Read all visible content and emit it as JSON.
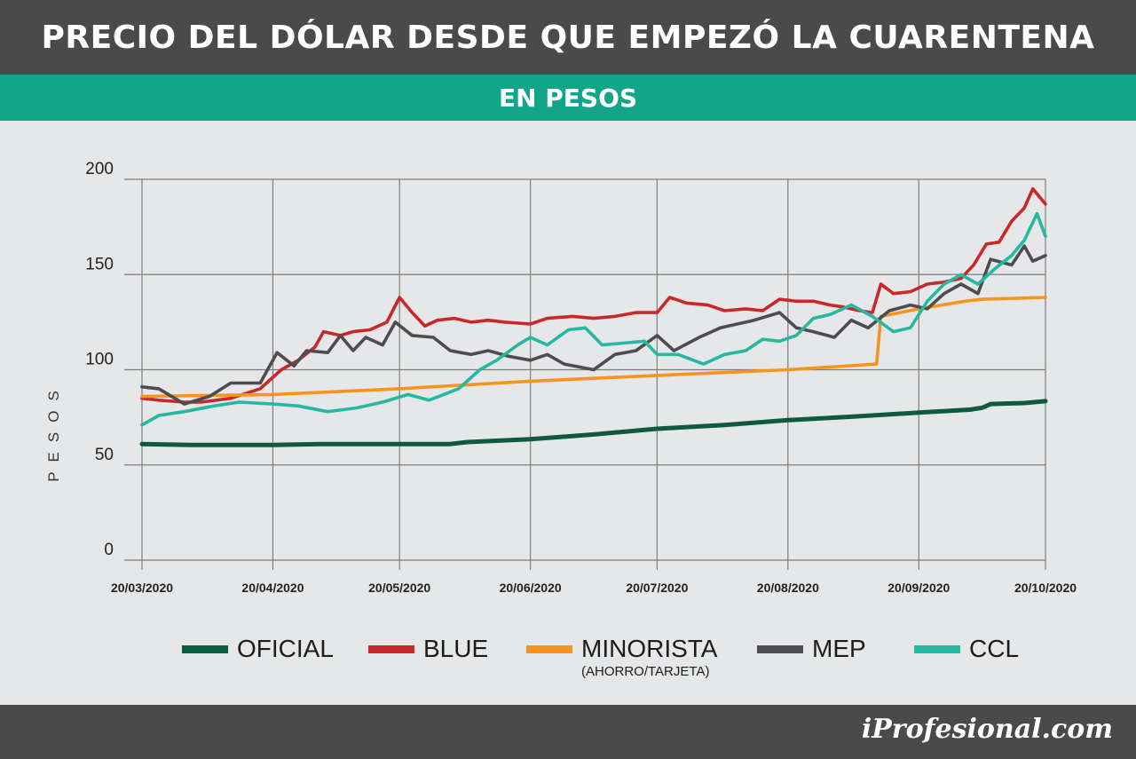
{
  "header": {
    "title": "PRECIO DEL DÓLAR DESDE QUE EMPEZÓ LA CUARENTENA",
    "subtitle": "EN PESOS"
  },
  "footer": {
    "brand": "iProfesional.com"
  },
  "colors": {
    "title_bar": "#4a4a4a",
    "subtitle_bar": "#12a58a",
    "oficial": "#0d5a3e",
    "blue": "#c8282a",
    "minorista": "#f7941d",
    "mep": "#4d4d4f",
    "ccl": "#26b8a0"
  },
  "legend": [
    {
      "key": "oficial",
      "label": "OFICIAL",
      "note": ""
    },
    {
      "key": "blue",
      "label": "BLUE",
      "note": ""
    },
    {
      "key": "minorista",
      "label": "MINORISTA",
      "note": "(AHORRO/TARJETA)"
    },
    {
      "key": "mep",
      "label": "MEP",
      "note": ""
    },
    {
      "key": "ccl",
      "label": "CCL",
      "note": ""
    }
  ],
  "chart_data": {
    "type": "line",
    "ylabel": "PESOS",
    "xlabel": "",
    "ylim": [
      0,
      200
    ],
    "yticks": [
      0,
      50,
      100,
      150,
      200
    ],
    "xticks": [
      "20/03/2020",
      "20/04/2020",
      "20/05/2020",
      "20/06/2020",
      "20/07/2020",
      "20/08/2020",
      "20/09/2020",
      "20/10/2020"
    ],
    "xrange": [
      "2020-03-20",
      "2020-10-20"
    ],
    "grid": true,
    "legend_position": "bottom",
    "series": [
      {
        "key": "oficial",
        "name": "OFICIAL",
        "points": [
          [
            "2020-03-20",
            61
          ],
          [
            "2020-04-01",
            60.5
          ],
          [
            "2020-04-20",
            60.5
          ],
          [
            "2020-05-01",
            61
          ],
          [
            "2020-05-20",
            61
          ],
          [
            "2020-06-01",
            61
          ],
          [
            "2020-06-05",
            62
          ],
          [
            "2020-06-20",
            63.5
          ],
          [
            "2020-07-05",
            66
          ],
          [
            "2020-07-20",
            69
          ],
          [
            "2020-08-05",
            71
          ],
          [
            "2020-08-20",
            73.5
          ],
          [
            "2020-09-05",
            75.5
          ],
          [
            "2020-09-20",
            77.5
          ],
          [
            "2020-10-02",
            79
          ],
          [
            "2020-10-05",
            80
          ],
          [
            "2020-10-07",
            82
          ],
          [
            "2020-10-15",
            82.5
          ],
          [
            "2020-10-20",
            83.5
          ]
        ]
      },
      {
        "key": "blue",
        "name": "BLUE",
        "points": [
          [
            "2020-03-20",
            85
          ],
          [
            "2020-03-24",
            84
          ],
          [
            "2020-03-30",
            83
          ],
          [
            "2020-04-03",
            83
          ],
          [
            "2020-04-10",
            85
          ],
          [
            "2020-04-17",
            90
          ],
          [
            "2020-04-22",
            100
          ],
          [
            "2020-04-26",
            105
          ],
          [
            "2020-04-30",
            112
          ],
          [
            "2020-05-02",
            120
          ],
          [
            "2020-05-06",
            118
          ],
          [
            "2020-05-09",
            120
          ],
          [
            "2020-05-13",
            121
          ],
          [
            "2020-05-17",
            125
          ],
          [
            "2020-05-20",
            138
          ],
          [
            "2020-05-23",
            130
          ],
          [
            "2020-05-26",
            123
          ],
          [
            "2020-05-29",
            126
          ],
          [
            "2020-06-02",
            127
          ],
          [
            "2020-06-06",
            125
          ],
          [
            "2020-06-10",
            126
          ],
          [
            "2020-06-14",
            125
          ],
          [
            "2020-06-20",
            124
          ],
          [
            "2020-06-24",
            127
          ],
          [
            "2020-06-30",
            128
          ],
          [
            "2020-07-05",
            127
          ],
          [
            "2020-07-10",
            128
          ],
          [
            "2020-07-15",
            130
          ],
          [
            "2020-07-20",
            130
          ],
          [
            "2020-07-23",
            138
          ],
          [
            "2020-07-27",
            135
          ],
          [
            "2020-08-01",
            134
          ],
          [
            "2020-08-05",
            131
          ],
          [
            "2020-08-10",
            132
          ],
          [
            "2020-08-14",
            131
          ],
          [
            "2020-08-18",
            137
          ],
          [
            "2020-08-22",
            136
          ],
          [
            "2020-08-26",
            136
          ],
          [
            "2020-08-30",
            134
          ],
          [
            "2020-09-02",
            133
          ],
          [
            "2020-09-06",
            131
          ],
          [
            "2020-09-09",
            130
          ],
          [
            "2020-09-11",
            145
          ],
          [
            "2020-09-14",
            140
          ],
          [
            "2020-09-18",
            141
          ],
          [
            "2020-09-22",
            145
          ],
          [
            "2020-09-26",
            146
          ],
          [
            "2020-09-30",
            148
          ],
          [
            "2020-10-03",
            155
          ],
          [
            "2020-10-06",
            166
          ],
          [
            "2020-10-09",
            167
          ],
          [
            "2020-10-12",
            178
          ],
          [
            "2020-10-15",
            185
          ],
          [
            "2020-10-17",
            195
          ],
          [
            "2020-10-20",
            187
          ]
        ]
      },
      {
        "key": "minorista",
        "name": "MINORISTA",
        "points": [
          [
            "2020-03-20",
            86
          ],
          [
            "2020-04-20",
            87
          ],
          [
            "2020-05-20",
            90
          ],
          [
            "2020-06-20",
            94
          ],
          [
            "2020-07-20",
            97
          ],
          [
            "2020-08-20",
            100
          ],
          [
            "2020-09-10",
            103
          ],
          [
            "2020-09-11",
            128
          ],
          [
            "2020-09-20",
            132
          ],
          [
            "2020-10-01",
            136
          ],
          [
            "2020-10-05",
            137
          ],
          [
            "2020-10-20",
            138
          ]
        ]
      },
      {
        "key": "mep",
        "name": "MEP",
        "points": [
          [
            "2020-03-20",
            91
          ],
          [
            "2020-03-24",
            90
          ],
          [
            "2020-03-30",
            82
          ],
          [
            "2020-04-05",
            86
          ],
          [
            "2020-04-10",
            93
          ],
          [
            "2020-04-17",
            93
          ],
          [
            "2020-04-21",
            109
          ],
          [
            "2020-04-25",
            102
          ],
          [
            "2020-04-28",
            110
          ],
          [
            "2020-05-03",
            109
          ],
          [
            "2020-05-06",
            118
          ],
          [
            "2020-05-09",
            110
          ],
          [
            "2020-05-12",
            117
          ],
          [
            "2020-05-16",
            113
          ],
          [
            "2020-05-19",
            125
          ],
          [
            "2020-05-23",
            118
          ],
          [
            "2020-05-28",
            117
          ],
          [
            "2020-06-01",
            110
          ],
          [
            "2020-06-06",
            108
          ],
          [
            "2020-06-10",
            110
          ],
          [
            "2020-06-15",
            107
          ],
          [
            "2020-06-20",
            105
          ],
          [
            "2020-06-24",
            108
          ],
          [
            "2020-06-28",
            103
          ],
          [
            "2020-07-05",
            100
          ],
          [
            "2020-07-10",
            108
          ],
          [
            "2020-07-15",
            110
          ],
          [
            "2020-07-20",
            118
          ],
          [
            "2020-07-24",
            110
          ],
          [
            "2020-07-30",
            117
          ],
          [
            "2020-08-04",
            122
          ],
          [
            "2020-08-08",
            124
          ],
          [
            "2020-08-12",
            126
          ],
          [
            "2020-08-18",
            130
          ],
          [
            "2020-08-22",
            122
          ],
          [
            "2020-08-26",
            120
          ],
          [
            "2020-08-31",
            117
          ],
          [
            "2020-09-04",
            126
          ],
          [
            "2020-09-08",
            122
          ],
          [
            "2020-09-13",
            131
          ],
          [
            "2020-09-18",
            134
          ],
          [
            "2020-09-22",
            132
          ],
          [
            "2020-09-26",
            140
          ],
          [
            "2020-09-30",
            145
          ],
          [
            "2020-10-04",
            140
          ],
          [
            "2020-10-07",
            158
          ],
          [
            "2020-10-12",
            155
          ],
          [
            "2020-10-15",
            165
          ],
          [
            "2020-10-17",
            157
          ],
          [
            "2020-10-20",
            160
          ]
        ]
      },
      {
        "key": "ccl",
        "name": "CCL",
        "points": [
          [
            "2020-03-20",
            71
          ],
          [
            "2020-03-24",
            76
          ],
          [
            "2020-03-30",
            78
          ],
          [
            "2020-04-06",
            81
          ],
          [
            "2020-04-12",
            83
          ],
          [
            "2020-04-20",
            82
          ],
          [
            "2020-04-26",
            81
          ],
          [
            "2020-05-03",
            78
          ],
          [
            "2020-05-10",
            80
          ],
          [
            "2020-05-16",
            83
          ],
          [
            "2020-05-22",
            87
          ],
          [
            "2020-05-27",
            84
          ],
          [
            "2020-06-03",
            90
          ],
          [
            "2020-06-08",
            100
          ],
          [
            "2020-06-12",
            105
          ],
          [
            "2020-06-17",
            113
          ],
          [
            "2020-06-20",
            117
          ],
          [
            "2020-06-24",
            113
          ],
          [
            "2020-06-29",
            121
          ],
          [
            "2020-07-03",
            122
          ],
          [
            "2020-07-07",
            113
          ],
          [
            "2020-07-12",
            114
          ],
          [
            "2020-07-17",
            115
          ],
          [
            "2020-07-20",
            108
          ],
          [
            "2020-07-25",
            108
          ],
          [
            "2020-07-31",
            103
          ],
          [
            "2020-08-05",
            108
          ],
          [
            "2020-08-10",
            110
          ],
          [
            "2020-08-14",
            116
          ],
          [
            "2020-08-18",
            115
          ],
          [
            "2020-08-22",
            118
          ],
          [
            "2020-08-26",
            127
          ],
          [
            "2020-08-30",
            129
          ],
          [
            "2020-09-04",
            134
          ],
          [
            "2020-09-09",
            128
          ],
          [
            "2020-09-14",
            120
          ],
          [
            "2020-09-18",
            122
          ],
          [
            "2020-09-22",
            136
          ],
          [
            "2020-09-26",
            145
          ],
          [
            "2020-09-30",
            150
          ],
          [
            "2020-10-04",
            145
          ],
          [
            "2020-10-08",
            153
          ],
          [
            "2020-10-12",
            160
          ],
          [
            "2020-10-15",
            168
          ],
          [
            "2020-10-18",
            182
          ],
          [
            "2020-10-20",
            170
          ]
        ]
      }
    ]
  }
}
